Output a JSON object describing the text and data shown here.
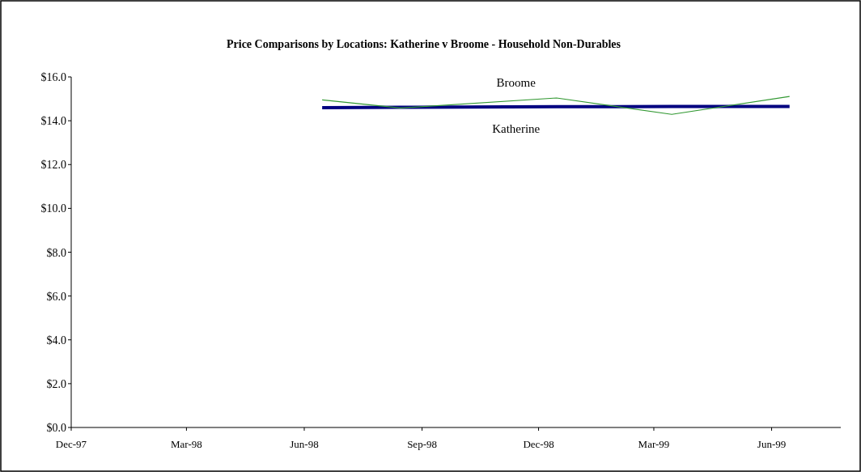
{
  "chart_data": {
    "type": "line",
    "title": "Price Comparisons by Locations: Katherine v Broome - Household Non-Durables",
    "x": [
      "1998-06-15",
      "1998-08-15",
      "1998-12-15",
      "1999-03-15",
      "1999-06-15"
    ],
    "series": [
      {
        "name": "Broome",
        "color": "#339933",
        "values": [
          14.95,
          14.58,
          15.04,
          14.29,
          15.11
        ]
      },
      {
        "name": "Katherine",
        "color": "#000080",
        "values": [
          14.6,
          14.61,
          14.64,
          14.65,
          14.65
        ]
      }
    ],
    "xlim": [
      "1997-12-01",
      "1999-07-25"
    ],
    "xticks": [
      {
        "value": "1997-12-01",
        "label": "Dec-97"
      },
      {
        "value": "1998-03-01",
        "label": "Mar-98"
      },
      {
        "value": "1998-06-01",
        "label": "Jun-98"
      },
      {
        "value": "1998-09-01",
        "label": "Sep-98"
      },
      {
        "value": "1998-12-01",
        "label": "Dec-98"
      },
      {
        "value": "1999-03-01",
        "label": "Mar-99"
      },
      {
        "value": "1999-06-01",
        "label": "Jun-99"
      }
    ],
    "ylim": [
      0,
      16
    ],
    "yticks": [
      {
        "value": 0,
        "label": "$0.0"
      },
      {
        "value": 2,
        "label": "$2.0"
      },
      {
        "value": 4,
        "label": "$4.0"
      },
      {
        "value": 6,
        "label": "$6.0"
      },
      {
        "value": 8,
        "label": "$8.0"
      },
      {
        "value": 10,
        "label": "$10.0"
      },
      {
        "value": 12,
        "label": "$12.0"
      },
      {
        "value": 14,
        "label": "$14.0"
      },
      {
        "value": 16,
        "label": "$16.0"
      }
    ],
    "grid": false,
    "marker": "none",
    "line_style": "solid"
  }
}
